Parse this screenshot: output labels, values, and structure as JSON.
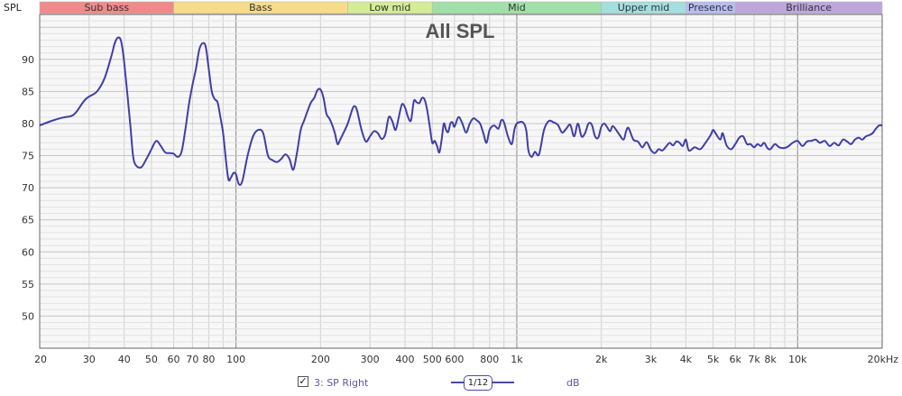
{
  "chart_data": {
    "type": "line",
    "title": "All SPL",
    "ylabel": "SPL",
    "xscale": "log",
    "xlim": [
      20,
      20000
    ],
    "ylim": [
      45,
      97
    ],
    "grid": true,
    "x_ticks": [
      {
        "v": 20,
        "label": "20"
      },
      {
        "v": 30,
        "label": "30"
      },
      {
        "v": 40,
        "label": "40"
      },
      {
        "v": 50,
        "label": "50"
      },
      {
        "v": 60,
        "label": "60"
      },
      {
        "v": 70,
        "label": "70"
      },
      {
        "v": 80,
        "label": "80"
      },
      {
        "v": 100,
        "label": "100"
      },
      {
        "v": 200,
        "label": "200"
      },
      {
        "v": 300,
        "label": "300"
      },
      {
        "v": 400,
        "label": "400"
      },
      {
        "v": 500,
        "label": "500"
      },
      {
        "v": 600,
        "label": "600"
      },
      {
        "v": 800,
        "label": "800"
      },
      {
        "v": 1000,
        "label": "1k"
      },
      {
        "v": 2000,
        "label": "2k"
      },
      {
        "v": 3000,
        "label": "3k"
      },
      {
        "v": 4000,
        "label": "4k"
      },
      {
        "v": 5000,
        "label": "5k"
      },
      {
        "v": 6000,
        "label": "6k"
      },
      {
        "v": 7000,
        "label": "7k"
      },
      {
        "v": 8000,
        "label": "8k"
      },
      {
        "v": 10000,
        "label": "10k"
      },
      {
        "v": 20000,
        "label": "20kHz"
      }
    ],
    "y_ticks": [
      50,
      55,
      60,
      65,
      70,
      75,
      80,
      85,
      90
    ],
    "bands": [
      {
        "label": "Sub bass",
        "from": 20,
        "to": 60,
        "color": "#f08a8a"
      },
      {
        "label": "Bass",
        "from": 60,
        "to": 250,
        "color": "#f7dc8a"
      },
      {
        "label": "Low mid",
        "from": 250,
        "to": 500,
        "color": "#d4ec96"
      },
      {
        "label": "Mid",
        "from": 500,
        "to": 2000,
        "color": "#a0e0a8"
      },
      {
        "label": "Upper mid",
        "from": 2000,
        "to": 4000,
        "color": "#a4dede"
      },
      {
        "label": "Presence",
        "from": 4000,
        "to": 6000,
        "color": "#b6bdf0"
      },
      {
        "label": "Brilliance",
        "from": 6000,
        "to": 20000,
        "color": "#bda6dc"
      }
    ],
    "series": [
      {
        "name": "3: SP Right",
        "color": "#3f3fa8",
        "points": [
          [
            20,
            79.7
          ],
          [
            22,
            80.4
          ],
          [
            24,
            80.9
          ],
          [
            26,
            81.2
          ],
          [
            27,
            81.8
          ],
          [
            28,
            82.8
          ],
          [
            29,
            83.7
          ],
          [
            30,
            84.2
          ],
          [
            32,
            85.0
          ],
          [
            34,
            87.0
          ],
          [
            36,
            90.5
          ],
          [
            37,
            92.5
          ],
          [
            38,
            93.4
          ],
          [
            39,
            92.8
          ],
          [
            40,
            89.5
          ],
          [
            42,
            80.0
          ],
          [
            43,
            75.0
          ],
          [
            44,
            73.5
          ],
          [
            46,
            73.2
          ],
          [
            48,
            74.5
          ],
          [
            50,
            76.0
          ],
          [
            52,
            77.3
          ],
          [
            54,
            76.5
          ],
          [
            56,
            75.5
          ],
          [
            58,
            75.4
          ],
          [
            60,
            75.3
          ],
          [
            62,
            74.8
          ],
          [
            64,
            75.6
          ],
          [
            66,
            79.0
          ],
          [
            68,
            83.0
          ],
          [
            70,
            86.0
          ],
          [
            72,
            88.5
          ],
          [
            74,
            91.5
          ],
          [
            76,
            92.5
          ],
          [
            78,
            92.0
          ],
          [
            80,
            88.5
          ],
          [
            82,
            85.0
          ],
          [
            84,
            83.8
          ],
          [
            86,
            83.3
          ],
          [
            88,
            81.0
          ],
          [
            90,
            78.5
          ],
          [
            92,
            74.5
          ],
          [
            94,
            71.3
          ],
          [
            96,
            71.6
          ],
          [
            98,
            72.3
          ],
          [
            100,
            72.1
          ],
          [
            102,
            70.7
          ],
          [
            104,
            70.5
          ],
          [
            106,
            71.5
          ],
          [
            110,
            75.0
          ],
          [
            115,
            78.0
          ],
          [
            120,
            79.0
          ],
          [
            125,
            78.5
          ],
          [
            130,
            75.0
          ],
          [
            135,
            74.3
          ],
          [
            140,
            74.0
          ],
          [
            145,
            74.5
          ],
          [
            150,
            75.2
          ],
          [
            155,
            74.5
          ],
          [
            160,
            72.8
          ],
          [
            165,
            75.5
          ],
          [
            170,
            79.0
          ],
          [
            175,
            80.5
          ],
          [
            180,
            82.0
          ],
          [
            185,
            83.3
          ],
          [
            190,
            84.0
          ],
          [
            195,
            85.2
          ],
          [
            200,
            85.3
          ],
          [
            205,
            84.0
          ],
          [
            210,
            81.5
          ],
          [
            215,
            80.8
          ],
          [
            220,
            79.8
          ],
          [
            225,
            78.5
          ],
          [
            230,
            76.8
          ],
          [
            235,
            77.5
          ],
          [
            240,
            78.3
          ],
          [
            250,
            80.0
          ],
          [
            260,
            82.3
          ],
          [
            265,
            82.7
          ],
          [
            270,
            82.0
          ],
          [
            280,
            79.0
          ],
          [
            290,
            77.2
          ],
          [
            300,
            78.0
          ],
          [
            310,
            78.8
          ],
          [
            320,
            78.5
          ],
          [
            330,
            77.6
          ],
          [
            340,
            78.3
          ],
          [
            350,
            81.0
          ],
          [
            360,
            80.4
          ],
          [
            370,
            79.0
          ],
          [
            380,
            81.0
          ],
          [
            390,
            83.0
          ],
          [
            400,
            82.5
          ],
          [
            410,
            81.0
          ],
          [
            420,
            80.5
          ],
          [
            430,
            83.5
          ],
          [
            440,
            83.3
          ],
          [
            450,
            83.2
          ],
          [
            460,
            84.0
          ],
          [
            470,
            83.7
          ],
          [
            480,
            82.0
          ],
          [
            490,
            79.5
          ],
          [
            500,
            77.0
          ],
          [
            510,
            77.3
          ],
          [
            520,
            76.5
          ],
          [
            530,
            75.5
          ],
          [
            540,
            77.5
          ],
          [
            550,
            80.0
          ],
          [
            560,
            79.0
          ],
          [
            570,
            78.7
          ],
          [
            580,
            80.0
          ],
          [
            590,
            80.2
          ],
          [
            600,
            79.5
          ],
          [
            620,
            81.0
          ],
          [
            640,
            80.0
          ],
          [
            660,
            78.6
          ],
          [
            680,
            80.0
          ],
          [
            700,
            80.8
          ],
          [
            720,
            80.5
          ],
          [
            740,
            80.0
          ],
          [
            760,
            78.5
          ],
          [
            780,
            77.0
          ],
          [
            800,
            79.0
          ],
          [
            830,
            79.7
          ],
          [
            860,
            79.2
          ],
          [
            880,
            80.5
          ],
          [
            900,
            80.2
          ],
          [
            930,
            78.0
          ],
          [
            960,
            76.8
          ],
          [
            980,
            79.0
          ],
          [
            1000,
            80.0
          ],
          [
            1050,
            80.2
          ],
          [
            1080,
            79.0
          ],
          [
            1100,
            75.8
          ],
          [
            1130,
            74.8
          ],
          [
            1160,
            75.6
          ],
          [
            1200,
            75.2
          ],
          [
            1250,
            79.0
          ],
          [
            1300,
            80.4
          ],
          [
            1350,
            80.2
          ],
          [
            1400,
            79.8
          ],
          [
            1450,
            78.6
          ],
          [
            1500,
            79.2
          ],
          [
            1550,
            79.8
          ],
          [
            1600,
            78.0
          ],
          [
            1650,
            80.0
          ],
          [
            1700,
            78.0
          ],
          [
            1750,
            78.5
          ],
          [
            1800,
            80.0
          ],
          [
            1850,
            79.8
          ],
          [
            1900,
            78.0
          ],
          [
            1950,
            77.8
          ],
          [
            2000,
            79.5
          ],
          [
            2050,
            80.0
          ],
          [
            2100,
            79.4
          ],
          [
            2150,
            78.8
          ],
          [
            2200,
            79.6
          ],
          [
            2300,
            78.5
          ],
          [
            2400,
            77.5
          ],
          [
            2450,
            78.8
          ],
          [
            2500,
            79.3
          ],
          [
            2600,
            77.5
          ],
          [
            2700,
            77.2
          ],
          [
            2800,
            76.3
          ],
          [
            2900,
            77.1
          ],
          [
            3000,
            75.9
          ],
          [
            3100,
            75.4
          ],
          [
            3200,
            76.0
          ],
          [
            3300,
            75.8
          ],
          [
            3400,
            76.4
          ],
          [
            3500,
            77.0
          ],
          [
            3600,
            76.6
          ],
          [
            3700,
            77.2
          ],
          [
            3800,
            77.0
          ],
          [
            3900,
            76.5
          ],
          [
            4000,
            77.5
          ],
          [
            4100,
            75.8
          ],
          [
            4300,
            76.3
          ],
          [
            4500,
            76.0
          ],
          [
            4700,
            77.0
          ],
          [
            4900,
            78.2
          ],
          [
            5000,
            79.0
          ],
          [
            5100,
            78.5
          ],
          [
            5300,
            77.5
          ],
          [
            5400,
            78.5
          ],
          [
            5500,
            77.5
          ],
          [
            5600,
            76.5
          ],
          [
            5800,
            76.0
          ],
          [
            6000,
            76.8
          ],
          [
            6200,
            77.8
          ],
          [
            6400,
            78.0
          ],
          [
            6600,
            76.8
          ],
          [
            6800,
            76.8
          ],
          [
            7000,
            76.3
          ],
          [
            7200,
            76.8
          ],
          [
            7400,
            76.5
          ],
          [
            7600,
            77.0
          ],
          [
            7800,
            76.2
          ],
          [
            8000,
            76.0
          ],
          [
            8300,
            76.8
          ],
          [
            8600,
            76.3
          ],
          [
            9000,
            76.2
          ],
          [
            9300,
            76.5
          ],
          [
            9600,
            77.0
          ],
          [
            10000,
            77.3
          ],
          [
            10400,
            76.5
          ],
          [
            10800,
            77.2
          ],
          [
            11200,
            77.3
          ],
          [
            11600,
            77.5
          ],
          [
            12000,
            77.0
          ],
          [
            12500,
            77.3
          ],
          [
            13000,
            76.5
          ],
          [
            13500,
            77.0
          ],
          [
            14000,
            76.6
          ],
          [
            14500,
            77.5
          ],
          [
            15000,
            77.2
          ],
          [
            15500,
            76.8
          ],
          [
            16000,
            77.5
          ],
          [
            16500,
            77.8
          ],
          [
            17000,
            77.5
          ],
          [
            17500,
            78.0
          ],
          [
            18000,
            78.2
          ],
          [
            18500,
            78.5
          ],
          [
            19000,
            79.2
          ],
          [
            19500,
            79.7
          ],
          [
            20000,
            79.7
          ]
        ]
      }
    ]
  },
  "footer": {
    "checkbox_mark": "✓",
    "legend_label": "3: SP Right",
    "smoothing_label": "1/12",
    "unit_label": "dB"
  }
}
